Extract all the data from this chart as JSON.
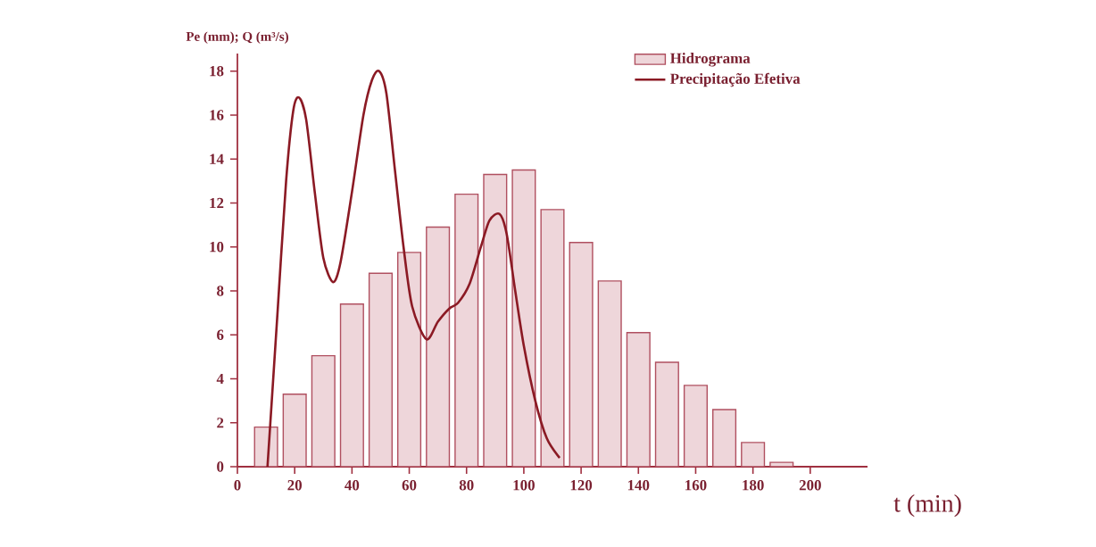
{
  "chart_data": {
    "type": "bar",
    "xlabel": "t (min)",
    "ylabel": "Pe (mm); Q (m³/s)",
    "xlim": [
      0,
      220
    ],
    "ylim": [
      0,
      18.8
    ],
    "xticks": [
      0,
      20,
      40,
      60,
      80,
      100,
      120,
      140,
      160,
      180,
      200
    ],
    "yticks": [
      0,
      2,
      4,
      6,
      8,
      10,
      12,
      14,
      16,
      18
    ],
    "legend": "top right",
    "series": [
      {
        "name": "Hidrograma",
        "color": "#eed6da",
        "x": [
          10,
          20,
          30,
          40,
          50,
          60,
          70,
          80,
          90,
          100,
          110,
          120,
          130,
          140,
          150,
          160,
          170,
          180,
          190
        ],
        "values": [
          1.8,
          3.3,
          5.05,
          7.4,
          8.8,
          9.75,
          10.9,
          12.4,
          13.3,
          13.5,
          11.7,
          10.2,
          8.45,
          6.1,
          4.75,
          3.7,
          2.6,
          1.1,
          0.2
        ]
      },
      {
        "name": "Precipitação Efetiva",
        "type": "line",
        "color": "#8b1a24",
        "marker": "none",
        "x": [
          10.5,
          14,
          17,
          19.5,
          21.5,
          24,
          27,
          30,
          33.4,
          36,
          40,
          44,
          47,
          49.5,
          52,
          55,
          58,
          61,
          66,
          70,
          74,
          77,
          81,
          85,
          88,
          91.5,
          94,
          97,
          100,
          104,
          108,
          112.5
        ],
        "values": [
          0,
          7,
          13,
          16.2,
          16.8,
          15.8,
          12.5,
          9.5,
          8.4,
          9.3,
          12.5,
          16,
          17.6,
          18,
          17,
          13.5,
          10,
          7.3,
          5.8,
          6.6,
          7.2,
          7.45,
          8.3,
          10,
          11.2,
          11.5,
          10.6,
          8,
          5.5,
          3,
          1.3,
          0.4
        ]
      }
    ]
  }
}
